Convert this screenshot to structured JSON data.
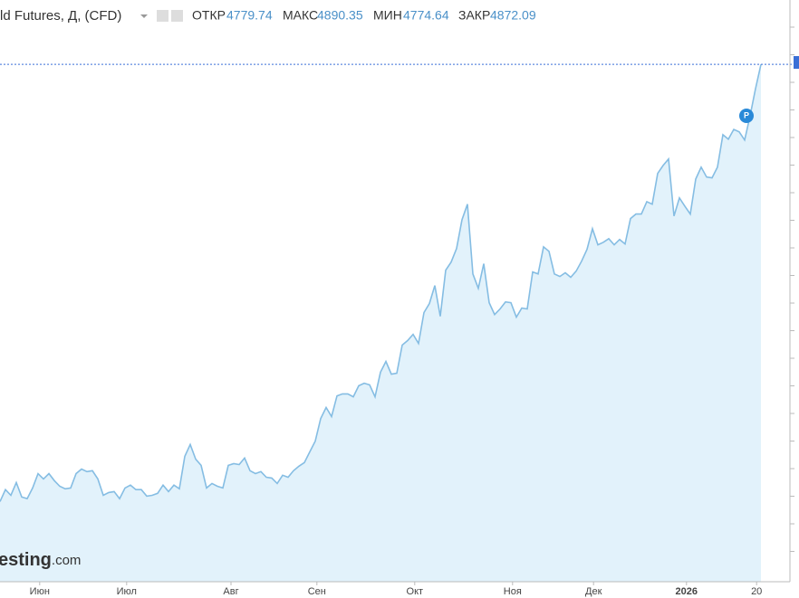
{
  "header": {
    "title": "ld Futures, Д, (CFD)",
    "open_label": "ОТКР",
    "open": 4779.74,
    "high_label": "МАКС",
    "high": 4890.35,
    "low_label": "МИН",
    "low": 4774.64,
    "close_label": "ЗАКР",
    "close": 4872.09
  },
  "watermark": {
    "brand": "esting",
    "suffix": ".com"
  },
  "marker_label": "P",
  "chart_data": {
    "type": "area",
    "color": "#85bde3",
    "fill": "#e2f2fb",
    "xlim": [
      0,
      140
    ],
    "ylim": [
      3040,
      5100
    ],
    "xticks": [
      {
        "value": 7.3,
        "label": "Июн"
      },
      {
        "value": 23.3,
        "label": "Июл"
      },
      {
        "value": 42.5,
        "label": "Авг"
      },
      {
        "value": 58.3,
        "label": "Сен"
      },
      {
        "value": 76.3,
        "label": "Окт"
      },
      {
        "value": 94.3,
        "label": "Ноя"
      },
      {
        "value": 109.2,
        "label": "Дек"
      },
      {
        "value": 126.3,
        "label": "2026"
      },
      {
        "value": 139.2,
        "label": "20"
      }
    ],
    "values": [
      3324,
      3366,
      3346,
      3391,
      3340,
      3334,
      3372,
      3423,
      3404,
      3423,
      3398,
      3378,
      3369,
      3372,
      3423,
      3439,
      3430,
      3433,
      3404,
      3346,
      3356,
      3359,
      3334,
      3372,
      3382,
      3366,
      3366,
      3343,
      3346,
      3353,
      3382,
      3359,
      3382,
      3369,
      3484,
      3526,
      3474,
      3452,
      3372,
      3388,
      3378,
      3372,
      3452,
      3458,
      3455,
      3478,
      3433,
      3423,
      3430,
      3410,
      3407,
      3388,
      3417,
      3410,
      3433,
      3449,
      3462,
      3500,
      3538,
      3618,
      3657,
      3625,
      3698,
      3705,
      3705,
      3695,
      3734,
      3743,
      3737,
      3695,
      3782,
      3820,
      3775,
      3778,
      3878,
      3894,
      3916,
      3884,
      3993,
      4025,
      4089,
      3980,
      4143,
      4172,
      4220,
      4322,
      4377,
      4130,
      4079,
      4166,
      4028,
      3986,
      4006,
      4031,
      4028,
      3977,
      4009,
      4006,
      4137,
      4130,
      4226,
      4210,
      4130,
      4121,
      4134,
      4118,
      4140,
      4175,
      4217,
      4290,
      4233,
      4242,
      4255,
      4233,
      4252,
      4236,
      4326,
      4342,
      4342,
      4386,
      4377,
      4486,
      4514,
      4537,
      4335,
      4399,
      4370,
      4342,
      4466,
      4508,
      4473,
      4470,
      4508,
      4623,
      4607,
      4642,
      4633,
      4604,
      4690,
      4786,
      4872
    ]
  }
}
